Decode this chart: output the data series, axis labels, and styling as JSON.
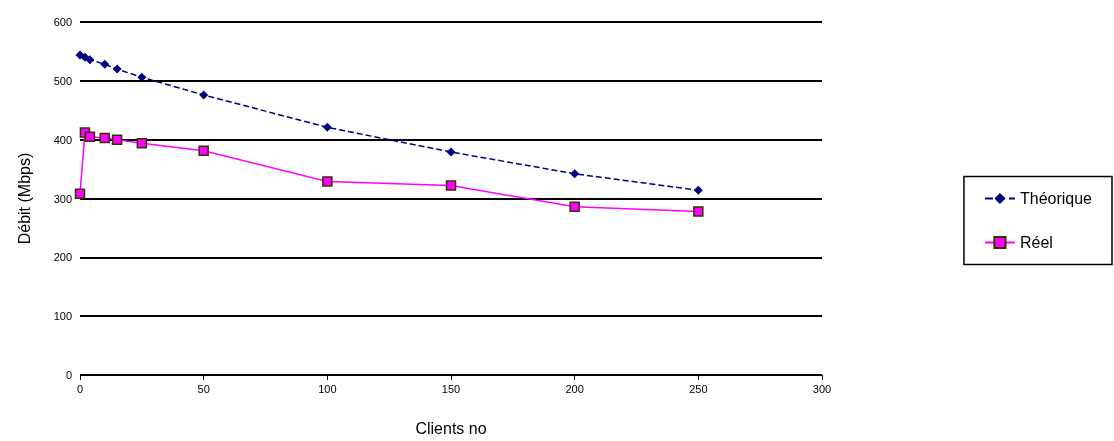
{
  "chart_data": {
    "type": "line",
    "xlabel": "Clients no",
    "ylabel": "Débit (Mbps)",
    "xlim": [
      0,
      300
    ],
    "xticks": [
      0,
      50,
      100,
      150,
      200,
      250,
      300
    ],
    "ylim": [
      0,
      600
    ],
    "yticks": [
      0,
      100,
      200,
      300,
      400,
      500,
      600
    ],
    "grid": "y",
    "legend": "right",
    "series": [
      {
        "name": "Théorique",
        "color": "#000080",
        "marker": "diamond",
        "line_style": "dashed",
        "x": [
          0,
          2,
          4,
          10,
          15,
          25,
          50,
          100,
          150,
          200,
          250
        ],
        "values": [
          544,
          540,
          536,
          528,
          520,
          506,
          476,
          421,
          379,
          342,
          314
        ]
      },
      {
        "name": "Réel",
        "color": "#ff00ff",
        "marker": "square",
        "line_style": "solid",
        "x": [
          0,
          2,
          4,
          10,
          15,
          25,
          50,
          100,
          150,
          200,
          250
        ],
        "values": [
          308,
          412,
          405,
          403,
          400,
          394,
          381,
          329,
          322,
          286,
          278
        ]
      }
    ]
  }
}
